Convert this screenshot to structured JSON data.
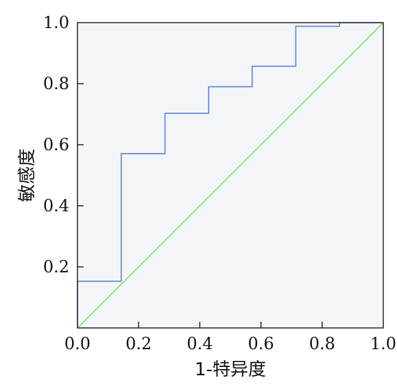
{
  "chart_data": {
    "type": "line",
    "title": "",
    "xlabel": "1-特异度",
    "ylabel": "敏感度",
    "xlim": [
      0,
      1
    ],
    "ylim": [
      0,
      1
    ],
    "x_ticks": [
      "0.0",
      "0.2",
      "0.4",
      "0.6",
      "0.8",
      "1.0"
    ],
    "y_ticks": [
      "0.2",
      "0.4",
      "0.6",
      "0.8",
      "1.0"
    ],
    "grid": false,
    "plot_background": "#f3f6f8",
    "series": [
      {
        "style": "step",
        "color": "#5b7fdb",
        "points": [
          [
            0.0,
            0.0
          ],
          [
            0.0,
            0.153
          ],
          [
            0.143,
            0.153
          ],
          [
            0.143,
            0.571
          ],
          [
            0.286,
            0.571
          ],
          [
            0.286,
            0.703
          ],
          [
            0.429,
            0.703
          ],
          [
            0.429,
            0.79
          ],
          [
            0.571,
            0.79
          ],
          [
            0.571,
            0.857
          ],
          [
            0.714,
            0.857
          ],
          [
            0.714,
            0.988
          ],
          [
            0.857,
            0.988
          ],
          [
            0.857,
            1.0
          ],
          [
            1.0,
            1.0
          ]
        ]
      },
      {
        "style": "diagonal",
        "color": "#7ae36a",
        "points": [
          [
            0.0,
            0.0
          ],
          [
            1.0,
            1.0
          ]
        ]
      }
    ]
  }
}
